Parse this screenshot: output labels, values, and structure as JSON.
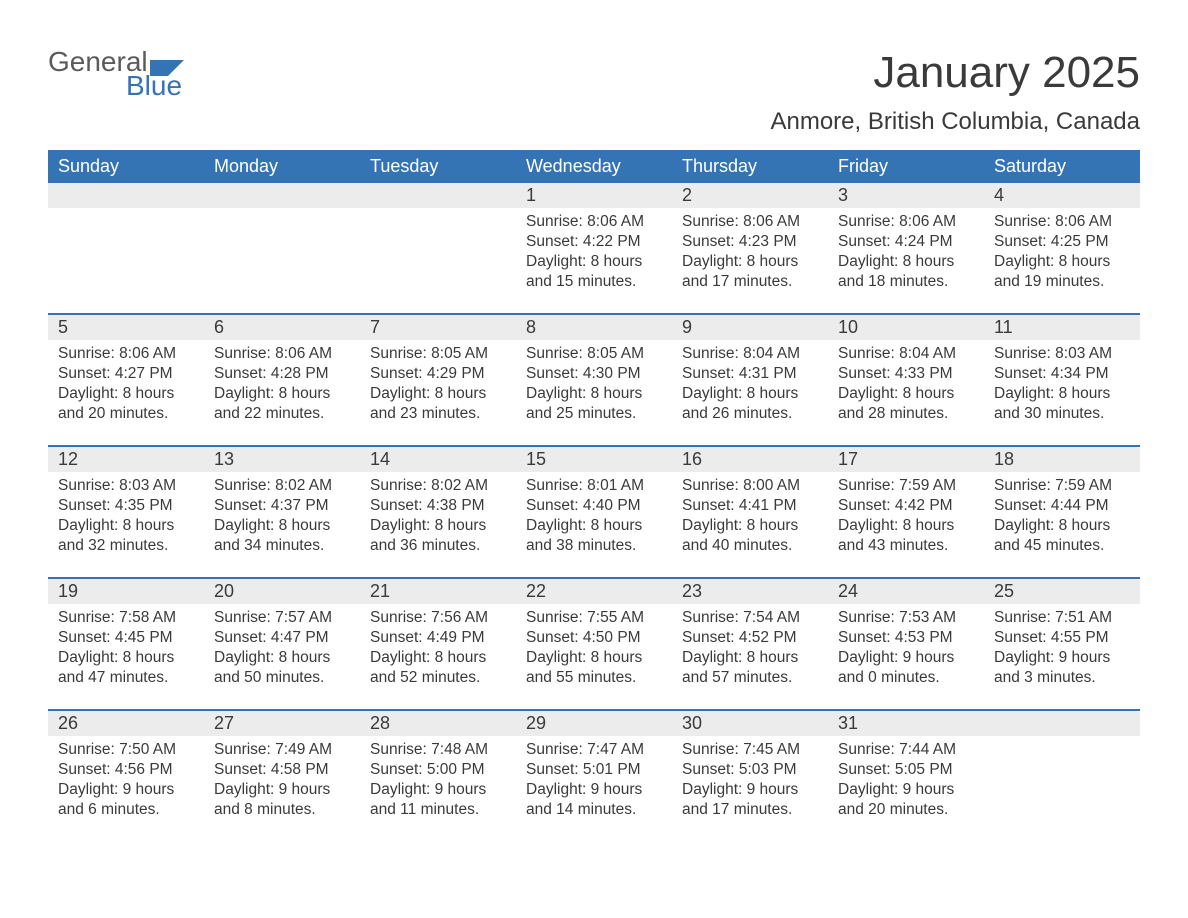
{
  "logo": {
    "general": "General",
    "blue": "Blue",
    "icon_color": "#3474b5"
  },
  "title": "January 2025",
  "location": "Anmore, British Columbia, Canada",
  "colors": {
    "header_bg": "#3474b5",
    "header_text": "#ffffff",
    "daynum_bg": "#ececec",
    "text": "#3a3a3a",
    "rule": "#3474b5",
    "page_bg": "#ffffff"
  },
  "typography": {
    "title_fontsize": 44,
    "location_fontsize": 24,
    "weekday_fontsize": 18,
    "daynum_fontsize": 18,
    "body_fontsize": 15.5
  },
  "weekdays": [
    "Sunday",
    "Monday",
    "Tuesday",
    "Wednesday",
    "Thursday",
    "Friday",
    "Saturday"
  ],
  "weeks": [
    [
      {
        "n": "",
        "sunrise": "",
        "sunset": "",
        "daylight": ""
      },
      {
        "n": "",
        "sunrise": "",
        "sunset": "",
        "daylight": ""
      },
      {
        "n": "",
        "sunrise": "",
        "sunset": "",
        "daylight": ""
      },
      {
        "n": "1",
        "sunrise": "Sunrise: 8:06 AM",
        "sunset": "Sunset: 4:22 PM",
        "daylight": "Daylight: 8 hours and 15 minutes."
      },
      {
        "n": "2",
        "sunrise": "Sunrise: 8:06 AM",
        "sunset": "Sunset: 4:23 PM",
        "daylight": "Daylight: 8 hours and 17 minutes."
      },
      {
        "n": "3",
        "sunrise": "Sunrise: 8:06 AM",
        "sunset": "Sunset: 4:24 PM",
        "daylight": "Daylight: 8 hours and 18 minutes."
      },
      {
        "n": "4",
        "sunrise": "Sunrise: 8:06 AM",
        "sunset": "Sunset: 4:25 PM",
        "daylight": "Daylight: 8 hours and 19 minutes."
      }
    ],
    [
      {
        "n": "5",
        "sunrise": "Sunrise: 8:06 AM",
        "sunset": "Sunset: 4:27 PM",
        "daylight": "Daylight: 8 hours and 20 minutes."
      },
      {
        "n": "6",
        "sunrise": "Sunrise: 8:06 AM",
        "sunset": "Sunset: 4:28 PM",
        "daylight": "Daylight: 8 hours and 22 minutes."
      },
      {
        "n": "7",
        "sunrise": "Sunrise: 8:05 AM",
        "sunset": "Sunset: 4:29 PM",
        "daylight": "Daylight: 8 hours and 23 minutes."
      },
      {
        "n": "8",
        "sunrise": "Sunrise: 8:05 AM",
        "sunset": "Sunset: 4:30 PM",
        "daylight": "Daylight: 8 hours and 25 minutes."
      },
      {
        "n": "9",
        "sunrise": "Sunrise: 8:04 AM",
        "sunset": "Sunset: 4:31 PM",
        "daylight": "Daylight: 8 hours and 26 minutes."
      },
      {
        "n": "10",
        "sunrise": "Sunrise: 8:04 AM",
        "sunset": "Sunset: 4:33 PM",
        "daylight": "Daylight: 8 hours and 28 minutes."
      },
      {
        "n": "11",
        "sunrise": "Sunrise: 8:03 AM",
        "sunset": "Sunset: 4:34 PM",
        "daylight": "Daylight: 8 hours and 30 minutes."
      }
    ],
    [
      {
        "n": "12",
        "sunrise": "Sunrise: 8:03 AM",
        "sunset": "Sunset: 4:35 PM",
        "daylight": "Daylight: 8 hours and 32 minutes."
      },
      {
        "n": "13",
        "sunrise": "Sunrise: 8:02 AM",
        "sunset": "Sunset: 4:37 PM",
        "daylight": "Daylight: 8 hours and 34 minutes."
      },
      {
        "n": "14",
        "sunrise": "Sunrise: 8:02 AM",
        "sunset": "Sunset: 4:38 PM",
        "daylight": "Daylight: 8 hours and 36 minutes."
      },
      {
        "n": "15",
        "sunrise": "Sunrise: 8:01 AM",
        "sunset": "Sunset: 4:40 PM",
        "daylight": "Daylight: 8 hours and 38 minutes."
      },
      {
        "n": "16",
        "sunrise": "Sunrise: 8:00 AM",
        "sunset": "Sunset: 4:41 PM",
        "daylight": "Daylight: 8 hours and 40 minutes."
      },
      {
        "n": "17",
        "sunrise": "Sunrise: 7:59 AM",
        "sunset": "Sunset: 4:42 PM",
        "daylight": "Daylight: 8 hours and 43 minutes."
      },
      {
        "n": "18",
        "sunrise": "Sunrise: 7:59 AM",
        "sunset": "Sunset: 4:44 PM",
        "daylight": "Daylight: 8 hours and 45 minutes."
      }
    ],
    [
      {
        "n": "19",
        "sunrise": "Sunrise: 7:58 AM",
        "sunset": "Sunset: 4:45 PM",
        "daylight": "Daylight: 8 hours and 47 minutes."
      },
      {
        "n": "20",
        "sunrise": "Sunrise: 7:57 AM",
        "sunset": "Sunset: 4:47 PM",
        "daylight": "Daylight: 8 hours and 50 minutes."
      },
      {
        "n": "21",
        "sunrise": "Sunrise: 7:56 AM",
        "sunset": "Sunset: 4:49 PM",
        "daylight": "Daylight: 8 hours and 52 minutes."
      },
      {
        "n": "22",
        "sunrise": "Sunrise: 7:55 AM",
        "sunset": "Sunset: 4:50 PM",
        "daylight": "Daylight: 8 hours and 55 minutes."
      },
      {
        "n": "23",
        "sunrise": "Sunrise: 7:54 AM",
        "sunset": "Sunset: 4:52 PM",
        "daylight": "Daylight: 8 hours and 57 minutes."
      },
      {
        "n": "24",
        "sunrise": "Sunrise: 7:53 AM",
        "sunset": "Sunset: 4:53 PM",
        "daylight": "Daylight: 9 hours and 0 minutes."
      },
      {
        "n": "25",
        "sunrise": "Sunrise: 7:51 AM",
        "sunset": "Sunset: 4:55 PM",
        "daylight": "Daylight: 9 hours and 3 minutes."
      }
    ],
    [
      {
        "n": "26",
        "sunrise": "Sunrise: 7:50 AM",
        "sunset": "Sunset: 4:56 PM",
        "daylight": "Daylight: 9 hours and 6 minutes."
      },
      {
        "n": "27",
        "sunrise": "Sunrise: 7:49 AM",
        "sunset": "Sunset: 4:58 PM",
        "daylight": "Daylight: 9 hours and 8 minutes."
      },
      {
        "n": "28",
        "sunrise": "Sunrise: 7:48 AM",
        "sunset": "Sunset: 5:00 PM",
        "daylight": "Daylight: 9 hours and 11 minutes."
      },
      {
        "n": "29",
        "sunrise": "Sunrise: 7:47 AM",
        "sunset": "Sunset: 5:01 PM",
        "daylight": "Daylight: 9 hours and 14 minutes."
      },
      {
        "n": "30",
        "sunrise": "Sunrise: 7:45 AM",
        "sunset": "Sunset: 5:03 PM",
        "daylight": "Daylight: 9 hours and 17 minutes."
      },
      {
        "n": "31",
        "sunrise": "Sunrise: 7:44 AM",
        "sunset": "Sunset: 5:05 PM",
        "daylight": "Daylight: 9 hours and 20 minutes."
      },
      {
        "n": "",
        "sunrise": "",
        "sunset": "",
        "daylight": ""
      }
    ]
  ]
}
